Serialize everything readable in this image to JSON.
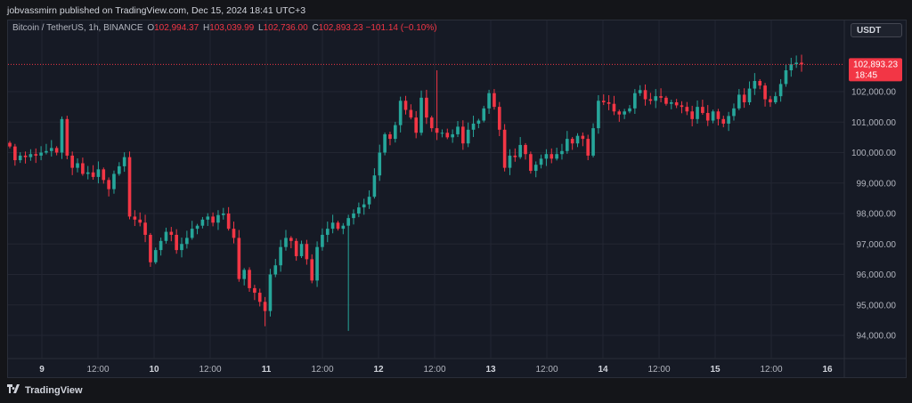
{
  "header": {
    "published": "jobvassmirn published on TradingView.com, Dec 15, 2024 18:41 UTC+3"
  },
  "legend": {
    "symbol": "Bitcoin / TetherUS, 1h, BINANCE",
    "o_label": "O",
    "o_value": "102,994.37",
    "h_label": "H",
    "h_value": "103,039.99",
    "l_label": "L",
    "l_value": "102,736.00",
    "c_label": "C",
    "c_value": "102,893.23",
    "change": "−101.14 (−0.10%)"
  },
  "currency": "USDT",
  "price_tag": {
    "price": "102,893.23",
    "time": "18:45"
  },
  "footer": {
    "brand": "TradingView"
  },
  "colors": {
    "up": "#26a69a",
    "down": "#f23645",
    "bg": "#161a25",
    "grid": "#232632",
    "text": "#b2b5be"
  },
  "chart_data": {
    "type": "candlestick",
    "interval": "1h",
    "y_ticks": [
      "94,000.00",
      "95,000.00",
      "96,000.00",
      "97,000.00",
      "98,000.00",
      "99,000.00",
      "100,000.00",
      "101,000.00",
      "102,000.00"
    ],
    "y_range": [
      93500,
      103500
    ],
    "x_ticks": [
      "9",
      "12:00",
      "10",
      "12:00",
      "11",
      "12:00",
      "12",
      "12:00",
      "13",
      "12:00",
      "14",
      "12:00",
      "15",
      "12:00",
      "16"
    ],
    "last_price": 102893.23,
    "close_series": [
      100200,
      99750,
      99900,
      99850,
      99950,
      99900,
      100000,
      100050,
      100150,
      100000,
      101100,
      99900,
      99500,
      99650,
      99300,
      99350,
      99200,
      99450,
      99100,
      98800,
      99300,
      99550,
      99850,
      97900,
      97800,
      97700,
      97300,
      96400,
      96800,
      97100,
      97400,
      97300,
      96800,
      97000,
      97200,
      97500,
      97600,
      97800,
      97900,
      97700,
      97950,
      98000,
      97500,
      97200,
      95850,
      96150,
      95550,
      95400,
      95100,
      94800,
      96000,
      96300,
      96900,
      97200,
      97100,
      96600,
      97000,
      96500,
      95800,
      96900,
      97300,
      97500,
      97700,
      97500,
      97600,
      97850,
      98000,
      98200,
      98300,
      98550,
      99250,
      100000,
      100600,
      100450,
      100900,
      101700,
      101400,
      101150,
      100650,
      101800,
      101150,
      100800,
      100650,
      100650,
      100500,
      100600,
      100850,
      100300,
      100750,
      100950,
      101050,
      101450,
      101950,
      101500,
      100750,
      99500,
      99900,
      99850,
      100250,
      99950,
      99400,
      99600,
      99800,
      99950,
      99800,
      99950,
      100050,
      100450,
      100300,
      100550,
      100450,
      99900,
      100800,
      101700,
      101650,
      101600,
      101350,
      101250,
      101350,
      101450,
      101950,
      102050,
      101750,
      101700,
      101850,
      101800,
      101600,
      101650,
      101550,
      101500,
      101350,
      101100,
      101500,
      101300,
      101050,
      101350,
      101100,
      100950,
      101200,
      101450,
      101900,
      101650,
      102100,
      102350,
      102200,
      101750,
      101650,
      101850,
      102250,
      102700,
      102900,
      102950,
      102893
    ]
  }
}
